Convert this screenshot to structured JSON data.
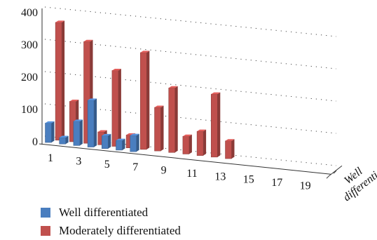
{
  "chart_data": {
    "type": "bar",
    "title": "",
    "xlabel": "",
    "ylabel": "",
    "ylim": [
      0,
      400
    ],
    "y_ticks": [
      "0",
      "100",
      "200",
      "300",
      "400"
    ],
    "x_tick_labels": [
      "1",
      "3",
      "5",
      "7",
      "9",
      "11",
      "13",
      "15",
      "17",
      "19"
    ],
    "depth_label": "Well differentiated",
    "grid": true,
    "legend_position": "bottom-left",
    "categories": [
      "1",
      "2",
      "3",
      "4",
      "5",
      "6",
      "7",
      "8",
      "9",
      "10",
      "11",
      "12",
      "13",
      "14",
      "15",
      "16",
      "17",
      "18",
      "19",
      "20"
    ],
    "series": [
      {
        "name": "Well differentiated",
        "color": "#4a7ebf",
        "values": [
          60,
          20,
          75,
          145,
          40,
          30,
          50,
          null,
          null,
          null,
          null,
          null,
          null,
          null,
          null,
          null,
          null,
          null,
          null,
          null
        ]
      },
      {
        "name": "Moderately differentiated",
        "color": "#c0504d",
        "values": [
          365,
          125,
          315,
          40,
          235,
          40,
          300,
          135,
          200,
          55,
          75,
          195,
          55,
          null,
          null,
          null,
          null,
          null,
          null,
          null
        ]
      }
    ]
  }
}
